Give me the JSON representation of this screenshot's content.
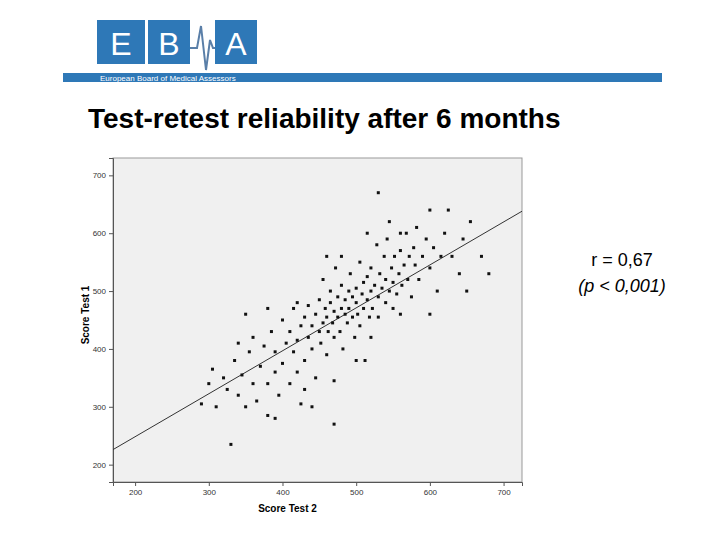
{
  "header": {
    "logo": [
      "E",
      "B",
      "A"
    ],
    "organization": "European Board of Medical Assessors"
  },
  "chart_data": {
    "type": "scatter",
    "title": "Test-retest reliability after 6 months",
    "x_label": "Score Test 2",
    "y_label": "Score Test 1",
    "annotations": [
      "r = 0,67",
      "(p < 0,001)"
    ],
    "xlim": [
      170,
      725
    ],
    "ylim": [
      170,
      730
    ],
    "xticks": [
      200,
      300,
      400,
      500,
      600,
      700
    ],
    "yticks": [
      200,
      300,
      400,
      500,
      600,
      700
    ],
    "grid": false,
    "marker": "square",
    "color": "#111111",
    "x": [
      290,
      300,
      305,
      310,
      320,
      325,
      330,
      335,
      340,
      340,
      345,
      350,
      355,
      360,
      360,
      365,
      370,
      375,
      380,
      380,
      385,
      390,
      390,
      395,
      400,
      400,
      405,
      410,
      410,
      415,
      415,
      420,
      420,
      425,
      425,
      430,
      430,
      435,
      435,
      440,
      440,
      445,
      445,
      450,
      450,
      452,
      455,
      455,
      458,
      460,
      460,
      462,
      465,
      465,
      468,
      470,
      470,
      472,
      475,
      475,
      478,
      480,
      480,
      482,
      485,
      485,
      488,
      490,
      490,
      492,
      495,
      495,
      498,
      500,
      500,
      502,
      505,
      505,
      508,
      510,
      510,
      512,
      515,
      515,
      518,
      520,
      520,
      522,
      525,
      528,
      530,
      530,
      532,
      535,
      538,
      540,
      540,
      542,
      545,
      548,
      550,
      550,
      552,
      555,
      558,
      560,
      562,
      565,
      568,
      570,
      572,
      575,
      578,
      580,
      582,
      585,
      590,
      595,
      600,
      605,
      610,
      615,
      620,
      625,
      630,
      640,
      645,
      650,
      655,
      670,
      680,
      470,
      560,
      600,
      530,
      545,
      420,
      380,
      500,
      430,
      460,
      515,
      560,
      480,
      600,
      350,
      520,
      440,
      390,
      470
    ],
    "values": [
      305,
      340,
      365,
      300,
      350,
      330,
      235,
      380,
      410,
      320,
      355,
      300,
      395,
      340,
      420,
      310,
      370,
      405,
      285,
      340,
      430,
      360,
      395,
      320,
      450,
      375,
      410,
      340,
      430,
      395,
      470,
      360,
      415,
      440,
      305,
      380,
      455,
      420,
      475,
      400,
      440,
      350,
      460,
      430,
      485,
      410,
      445,
      520,
      470,
      390,
      455,
      430,
      480,
      500,
      445,
      420,
      465,
      540,
      455,
      490,
      430,
      470,
      510,
      400,
      460,
      485,
      445,
      500,
      470,
      530,
      455,
      490,
      420,
      480,
      505,
      460,
      550,
      440,
      495,
      470,
      515,
      380,
      485,
      525,
      455,
      500,
      540,
      470,
      510,
      580,
      490,
      455,
      530,
      505,
      560,
      480,
      520,
      590,
      500,
      540,
      470,
      515,
      560,
      495,
      530,
      570,
      510,
      545,
      600,
      520,
      560,
      490,
      575,
      545,
      610,
      520,
      560,
      590,
      540,
      575,
      500,
      560,
      600,
      640,
      560,
      530,
      590,
      500,
      620,
      560,
      530,
      345,
      460,
      640,
      670,
      620,
      480,
      470,
      380,
      330,
      560,
      600,
      600,
      560,
      460,
      460,
      420,
      300,
      280,
      270
    ],
    "fit_line": {
      "x": [
        170,
        725
      ],
      "values": [
        226,
        638
      ],
      "color": "#333333"
    }
  }
}
